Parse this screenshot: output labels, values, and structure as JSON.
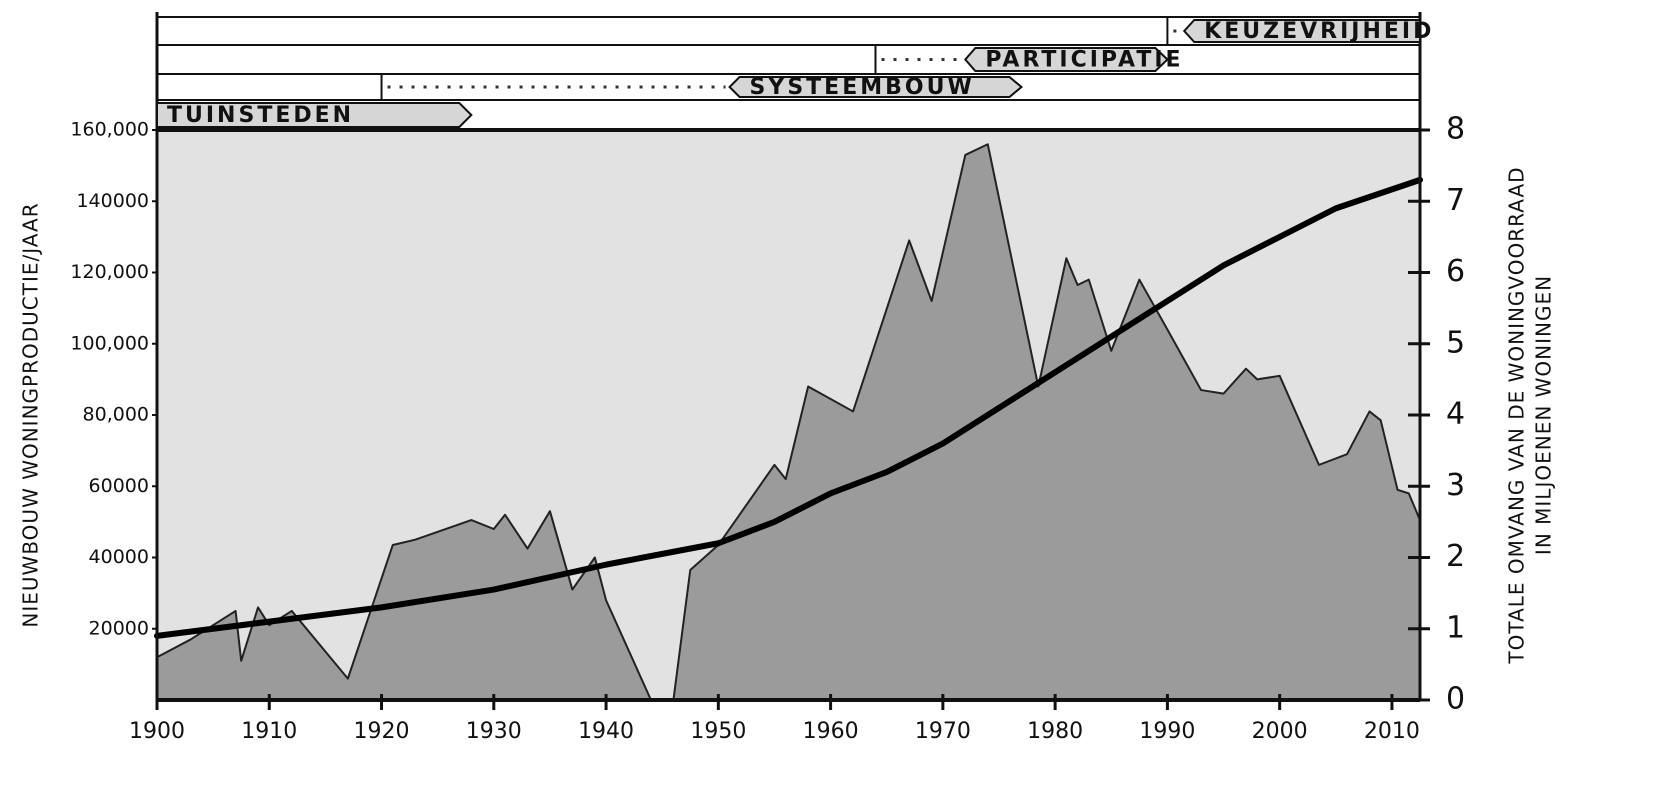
{
  "chart_data": {
    "type": "area-line",
    "y_label": "NIEUWBOUW WONINGPRODUCTIE/JAAR",
    "y2_label": [
      "TOTALE OMVANG VAN DE WONINGVOORRAAD",
      "IN MILJOENEN WONINGEN"
    ],
    "xlim": [
      1900,
      2012.5
    ],
    "xticks": [
      1900,
      1910,
      1920,
      1930,
      1940,
      1950,
      1960,
      1970,
      1980,
      1990,
      2000,
      2010
    ],
    "ylim": [
      0,
      160000
    ],
    "yticks": [
      20000,
      40000,
      60000,
      {
        "value": 80000,
        "label": "80,000"
      },
      {
        "value": 100000,
        "label": "100,000"
      },
      {
        "value": 120000,
        "label": "120,000"
      },
      140000,
      {
        "value": 160000,
        "label": "160,000"
      }
    ],
    "y2lim": [
      0,
      8
    ],
    "y2ticks": [
      0,
      1,
      2,
      3,
      4,
      5,
      6,
      7,
      8
    ],
    "background": "#e2e2e2",
    "series": [
      {
        "type": "area",
        "color": "#9b9b9b",
        "x": [
          1900,
          1903,
          1907,
          1907.5,
          1909,
          1910,
          1912,
          1917,
          1921,
          1923,
          1928,
          1930,
          1931,
          1933,
          1935,
          1937,
          1939,
          1940,
          1944,
          1946,
          1947.5,
          1950,
          1955,
          1956,
          1958,
          1962,
          1967,
          1969,
          1972,
          1974,
          1978.5,
          1981,
          1982,
          1983,
          1985,
          1987.5,
          1990,
          1993,
          1995,
          1997,
          1998,
          2000,
          2003.5,
          2006,
          2008,
          2009,
          2010.5,
          2011.5,
          2012.5
        ],
        "values": [
          12000,
          17000,
          25000,
          11000,
          26000,
          21000,
          25000,
          6000,
          43500,
          45000,
          50500,
          48000,
          52000,
          42500,
          53000,
          31000,
          40000,
          28000,
          0,
          0,
          36500,
          43500,
          66000,
          62000,
          88000,
          81000,
          129000,
          112000,
          153000,
          156000,
          88000,
          124000,
          116500,
          118000,
          98000,
          118000,
          104000,
          87000,
          86000,
          93000,
          90000,
          91000,
          66000,
          69000,
          81000,
          78500,
          59000,
          58000,
          50500
        ]
      },
      {
        "type": "line",
        "axis": "y2",
        "color": "#000000",
        "x": [
          1900,
          1910,
          1920,
          1930,
          1940,
          1950,
          1955,
          1960,
          1965,
          1970,
          1975,
          1980,
          1985,
          1990,
          1995,
          2000,
          2005,
          2012.5
        ],
        "values": [
          0.9,
          1.1,
          1.3,
          1.55,
          1.9,
          2.2,
          2.5,
          2.9,
          3.2,
          3.6,
          4.1,
          4.6,
          5.1,
          5.6,
          6.1,
          6.5,
          6.9,
          7.3
        ]
      }
    ],
    "periods": [
      {
        "label": "TUINSTEDEN",
        "start": 1900,
        "end": 1928
      },
      {
        "label": "SYSTEEMBOUW",
        "start": 1920,
        "solid_from": 1951,
        "end": 1977
      },
      {
        "label": "PARTICIPATIE",
        "start": 1964,
        "solid_from": 1972,
        "end": 1990
      },
      {
        "label": "KEUZEVRIJHEID",
        "start": 1990,
        "solid_from": 1991.5,
        "end": 2012.5
      }
    ]
  }
}
